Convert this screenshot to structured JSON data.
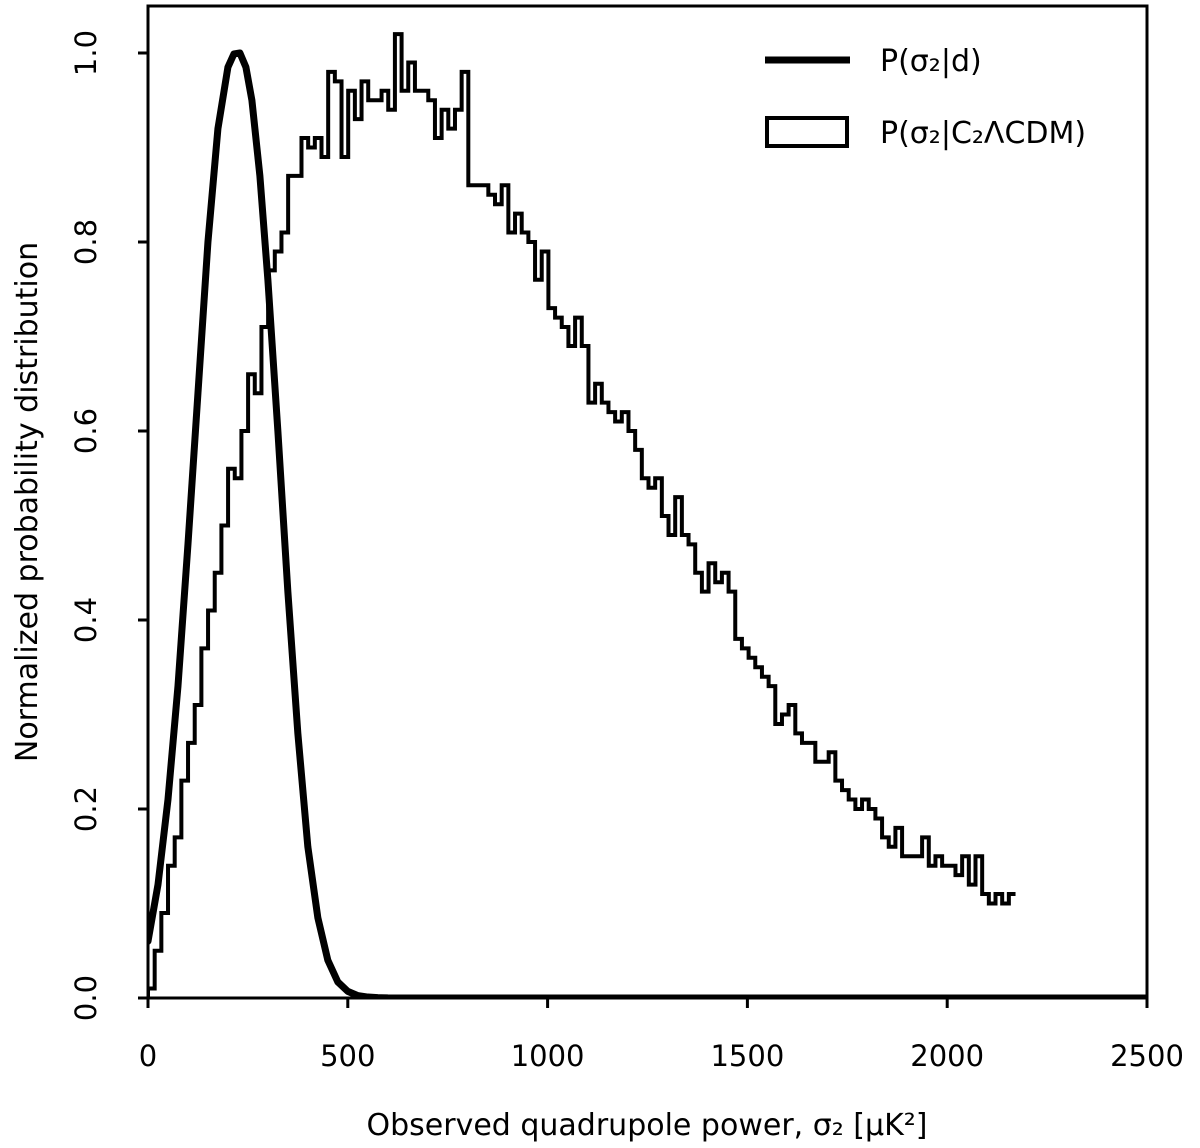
{
  "chart_data": {
    "type": "line",
    "xlabel": "Observed quadrupole power, σ₂ [μK²]",
    "ylabel": "Normalized probability distribution",
    "xlim": [
      0,
      2500
    ],
    "ylim": [
      0,
      1.05
    ],
    "xticks": [
      0,
      500,
      1000,
      1500,
      2000,
      2500
    ],
    "xtick_labels": [
      "0",
      "500",
      "1000",
      "1500",
      "2000",
      "2500"
    ],
    "yticks": [
      0.0,
      0.2,
      0.4,
      0.6,
      0.8,
      1.0
    ],
    "ytick_labels": [
      "0.0",
      "0.2",
      "0.4",
      "0.6",
      "0.8",
      "1.0"
    ],
    "grid": false,
    "legend_position": "top-right",
    "legend": {
      "curve_label": "P(σ₂|d)",
      "hist_label": "P(σ₂|C₂ᐱCDM)"
    },
    "series": [
      {
        "name": "P(σ₂|d)",
        "style": "thick-line",
        "x": [
          0,
          25,
          50,
          75,
          100,
          125,
          150,
          175,
          200,
          215,
          230,
          245,
          260,
          280,
          300,
          325,
          350,
          375,
          400,
          425,
          450,
          475,
          500,
          525,
          550,
          575,
          600,
          650,
          700,
          800,
          1000,
          1500,
          2000,
          2500
        ],
        "y": [
          0.06,
          0.12,
          0.21,
          0.33,
          0.48,
          0.64,
          0.8,
          0.92,
          0.985,
          0.999,
          1.0,
          0.985,
          0.95,
          0.87,
          0.76,
          0.6,
          0.43,
          0.28,
          0.16,
          0.085,
          0.04,
          0.017,
          0.007,
          0.0025,
          0.001,
          0.0004,
          0.0001,
          0.0,
          0.0,
          0.0,
          0.0,
          0.0,
          0.0,
          0.0
        ]
      },
      {
        "name": "P(σ₂|C₂ᐱCDM)",
        "style": "step-histogram",
        "bin_width": 16.7,
        "values": [
          0.01,
          0.05,
          0.09,
          0.14,
          0.17,
          0.23,
          0.27,
          0.31,
          0.37,
          0.41,
          0.45,
          0.5,
          0.56,
          0.55,
          0.6,
          0.66,
          0.64,
          0.71,
          0.77,
          0.79,
          0.81,
          0.87,
          0.87,
          0.91,
          0.9,
          0.91,
          0.89,
          0.98,
          0.97,
          0.89,
          0.96,
          0.93,
          0.97,
          0.95,
          0.95,
          0.96,
          0.94,
          1.02,
          0.96,
          0.99,
          0.96,
          0.96,
          0.95,
          0.91,
          0.94,
          0.92,
          0.94,
          0.98,
          0.86,
          0.86,
          0.86,
          0.85,
          0.84,
          0.86,
          0.81,
          0.83,
          0.81,
          0.8,
          0.76,
          0.79,
          0.73,
          0.72,
          0.71,
          0.69,
          0.72,
          0.69,
          0.63,
          0.65,
          0.63,
          0.62,
          0.61,
          0.62,
          0.6,
          0.58,
          0.55,
          0.54,
          0.55,
          0.51,
          0.49,
          0.53,
          0.49,
          0.48,
          0.45,
          0.43,
          0.46,
          0.44,
          0.45,
          0.43,
          0.38,
          0.37,
          0.36,
          0.35,
          0.34,
          0.33,
          0.29,
          0.3,
          0.31,
          0.28,
          0.27,
          0.27,
          0.25,
          0.25,
          0.26,
          0.23,
          0.22,
          0.21,
          0.2,
          0.21,
          0.2,
          0.19,
          0.17,
          0.16,
          0.18,
          0.15,
          0.15,
          0.15,
          0.17,
          0.14,
          0.15,
          0.14,
          0.14,
          0.13,
          0.15,
          0.12,
          0.15,
          0.11,
          0.1,
          0.11,
          0.1,
          0.11
        ]
      }
    ]
  }
}
